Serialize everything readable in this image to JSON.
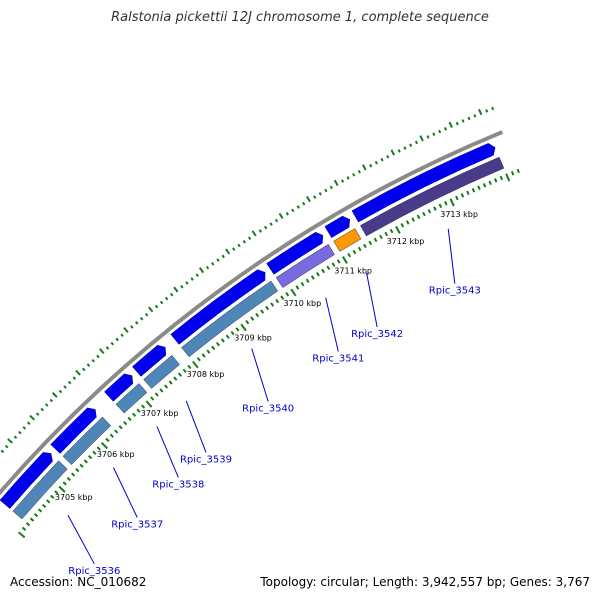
{
  "title": "Ralstonia pickettii 12J chromosome 1, complete sequence",
  "accession": "Accession: NC_010682",
  "summary": "Topology: circular; Length: 3,942,557 bp; Genes: 3,767",
  "colors": {
    "backbone": "#8a8a8a",
    "gene_fwd": "#0000ee",
    "gene_cds_a": "#4f86b8",
    "gene_cds_b": "#7a6ae0",
    "gene_orange": "#ff9900",
    "gene_dark": "#4a3a8a",
    "ticks": "#1a7a1a",
    "label": "#0000cc"
  },
  "kbp_ticks": [
    {
      "label": "3705 kbp",
      "pos": 3705
    },
    {
      "label": "3706 kbp",
      "pos": 3706
    },
    {
      "label": "3707 kbp",
      "pos": 3707
    },
    {
      "label": "3708 kbp",
      "pos": 3708
    },
    {
      "label": "3709 kbp",
      "pos": 3709
    },
    {
      "label": "3710 kbp",
      "pos": 3710
    },
    {
      "label": "3711 kbp",
      "pos": 3711
    },
    {
      "label": "3712 kbp",
      "pos": 3712
    },
    {
      "label": "3713 kbp",
      "pos": 3713
    }
  ],
  "genes": [
    {
      "name": "Rpic_3536",
      "start": 3704.2,
      "end": 3705.3
    },
    {
      "name": "Rpic_3537",
      "start": 3705.4,
      "end": 3706.3
    },
    {
      "name": "Rpic_3538",
      "start": 3706.6,
      "end": 3707.1
    },
    {
      "name": "Rpic_3539",
      "start": 3707.2,
      "end": 3707.8
    },
    {
      "name": "Rpic_3540",
      "start": 3708.0,
      "end": 3709.8
    },
    {
      "name": "Rpic_3541",
      "start": 3709.9,
      "end": 3710.9
    },
    {
      "name": "Rpic_3542",
      "start": 3711.0,
      "end": 3711.4
    },
    {
      "name": "Rpic_3543",
      "start": 3711.5,
      "end": 3714.0
    }
  ]
}
